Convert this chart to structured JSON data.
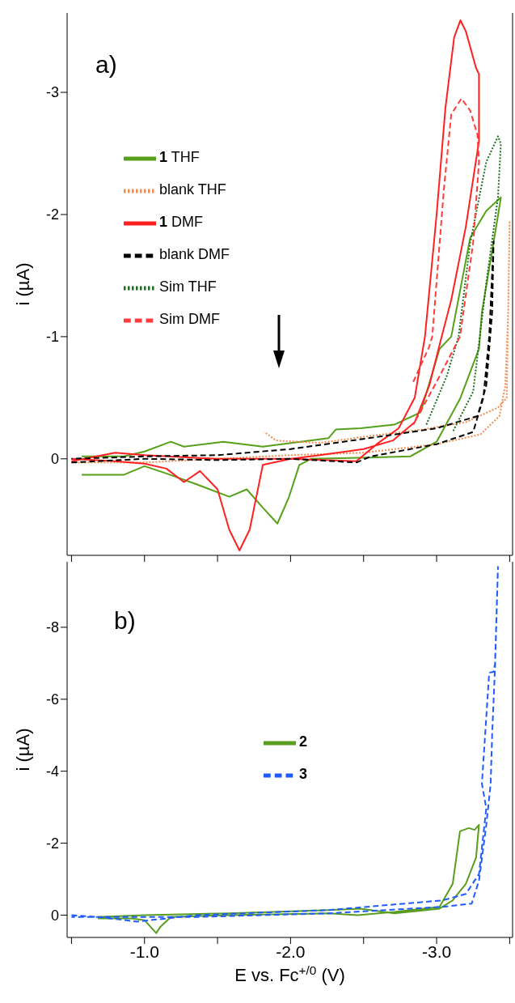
{
  "chart_data": [
    {
      "type": "line",
      "ylabel": "i (µA)",
      "annotations": [
        "a)"
      ],
      "legend": "top left",
      "tick_labels": "y",
      "xlim": [
        -0.47,
        -3.52
      ],
      "xticks": [
        {
          "value": -0.5,
          "label": null
        },
        {
          "value": -1,
          "label": null
        },
        {
          "value": -1.5,
          "label": null
        },
        {
          "value": -2,
          "label": null
        },
        {
          "value": -2.5,
          "label": null
        },
        {
          "value": -3,
          "label": null
        },
        {
          "value": -3.5,
          "label": null
        }
      ],
      "ylim": [
        0.79,
        -3.65
      ],
      "yticks": [
        -3,
        -2,
        -1,
        0
      ],
      "series": [
        {
          "name": "1 THF",
          "color": "#56a01a",
          "line_style": "solid",
          "x": [
            -0.57,
            -0.86,
            -1.0,
            -1.18,
            -1.27,
            -1.54,
            -1.81,
            -2.26,
            -2.31,
            -2.48,
            -2.71,
            -2.89,
            -3.02,
            -3.1,
            -3.23,
            -3.34,
            -3.44,
            -3.42,
            -3.31,
            -3.29,
            -3.16,
            -3.0,
            -2.82,
            -2.53,
            -2.14,
            -2.06,
            -1.99,
            -1.91,
            -1.81,
            -1.7,
            -1.58,
            -1.36,
            -1.15,
            -1.0,
            -0.86,
            -0.57
          ],
          "values": [
            -0.02,
            -0.02,
            -0.06,
            -0.14,
            -0.1,
            -0.14,
            -0.1,
            -0.17,
            -0.24,
            -0.25,
            -0.28,
            -0.38,
            -0.9,
            -1.0,
            -1.81,
            -2.03,
            -2.14,
            -1.99,
            -1.2,
            -0.9,
            -0.49,
            -0.14,
            -0.02,
            -0.01,
            0.0,
            0.05,
            0.31,
            0.53,
            0.4,
            0.25,
            0.31,
            0.21,
            0.12,
            0.06,
            0.13,
            0.13
          ]
        },
        {
          "name": "blank THF",
          "color": "#f28c50",
          "line_style": "dotted",
          "x": [
            -0.5,
            -1.0,
            -1.5,
            -2.0,
            -2.5,
            -3.0,
            -3.3,
            -3.43,
            -3.47,
            -3.49,
            -3.5,
            -3.48,
            -3.42,
            -3.2,
            -2.9,
            -2.5,
            -2.2,
            -1.9,
            -1.82
          ],
          "values": [
            0.03,
            0.03,
            0.0,
            -0.03,
            -0.05,
            -0.12,
            -0.2,
            -0.35,
            -0.6,
            -1.2,
            -1.95,
            -0.5,
            -0.42,
            -0.3,
            -0.24,
            -0.18,
            -0.13,
            -0.15,
            -0.22
          ]
        },
        {
          "name": "1 DMF",
          "color": "#ff2020",
          "line_style": "solid",
          "x": [
            -0.5,
            -0.8,
            -1.0,
            -1.5,
            -2.0,
            -2.45,
            -2.59,
            -2.74,
            -2.85,
            -2.92,
            -3.0,
            -3.06,
            -3.12,
            -3.163,
            -3.2,
            -3.27,
            -3.29,
            -3.29,
            -3.2,
            -3.1,
            -3.03,
            -2.95,
            -2.85,
            -2.7,
            -2.5,
            -2.2,
            -2.0,
            -1.81,
            -1.72,
            -1.65,
            -1.58,
            -1.5,
            -1.38,
            -1.27,
            -1.15,
            -1.0,
            -0.8,
            -0.5
          ],
          "values": [
            0.02,
            -0.05,
            -0.03,
            0.0,
            0.0,
            0.02,
            -0.12,
            -0.25,
            -0.5,
            -1.0,
            -2.0,
            -2.87,
            -3.45,
            -3.59,
            -3.5,
            -3.2,
            -3.15,
            -2.6,
            -1.9,
            -1.3,
            -0.98,
            -0.6,
            -0.3,
            -0.15,
            -0.08,
            -0.03,
            0.0,
            0.05,
            0.58,
            0.75,
            0.58,
            0.25,
            0.1,
            0.19,
            0.08,
            0.04,
            0.02,
            0.0
          ]
        },
        {
          "name": "blank DMF",
          "color": "#000000",
          "line_style": "dashed",
          "x": [
            -0.5,
            -1.0,
            -1.5,
            -2.0,
            -2.45,
            -2.55,
            -3.0,
            -3.25,
            -3.32,
            -3.36,
            -3.39,
            -3.38,
            -3.34,
            -3.28,
            -3.0,
            -2.6,
            -2.0,
            -1.5,
            -1.0,
            -0.5
          ],
          "values": [
            0.03,
            0.0,
            0.01,
            0.0,
            0.03,
            -0.02,
            -0.12,
            -0.22,
            -0.5,
            -1.0,
            -1.78,
            -1.2,
            -0.6,
            -0.35,
            -0.25,
            -0.18,
            -0.08,
            -0.03,
            -0.02,
            0.0
          ]
        },
        {
          "name": "Sim THF",
          "color": "#1c6e1c",
          "line_style": "dotted",
          "x": [
            -2.93,
            -3.07,
            -3.15,
            -3.23,
            -3.34,
            -3.42,
            -3.44,
            -3.42,
            -3.34,
            -3.25,
            -3.11
          ],
          "values": [
            -0.28,
            -0.68,
            -1.0,
            -1.77,
            -2.43,
            -2.64,
            -2.58,
            -2.14,
            -1.44,
            -0.55,
            -0.22
          ]
        },
        {
          "name": "Sim DMF",
          "color": "#ff3b3b",
          "line_style": "dashed",
          "x": [
            -2.84,
            -2.95,
            -2.97,
            -3.05,
            -3.1,
            -3.17,
            -3.23,
            -3.28,
            -3.29,
            -3.25,
            -3.16,
            -3.0,
            -2.84
          ],
          "values": [
            -0.63,
            -0.92,
            -1.0,
            -2.21,
            -2.82,
            -2.95,
            -2.85,
            -2.65,
            -2.43,
            -1.77,
            -1.0,
            -0.63,
            -0.28
          ]
        }
      ]
    },
    {
      "type": "line",
      "xlabel": "E vs. Fc$^{+/0}$ (V)",
      "ylabel": "i (µA)",
      "annotations": [
        "b)"
      ],
      "legend": "center",
      "xlim": [
        -0.47,
        -3.52
      ],
      "xticks": [
        {
          "value": -0.5,
          "label": null
        },
        {
          "value": -1,
          "label": "-1.0"
        },
        {
          "value": -1.5,
          "label": null
        },
        {
          "value": -2,
          "label": "-2.0"
        },
        {
          "value": -2.5,
          "label": null
        },
        {
          "value": -3,
          "label": "-3.0"
        },
        {
          "value": -3.5,
          "label": null
        }
      ],
      "ylim": [
        0.62,
        -9.82
      ],
      "yticks": [
        -8,
        -6,
        -4,
        -2,
        0
      ],
      "series": [
        {
          "name": "2",
          "color": "#5a9e20",
          "line_style": "solid",
          "x": [
            -0.68,
            -0.91,
            -1.0,
            -1.08,
            -1.11,
            -1.18,
            -1.58,
            -2.26,
            -2.46,
            -2.71,
            -3.02,
            -3.11,
            -3.16,
            -3.22,
            -3.26,
            -3.29,
            -3.27,
            -3.2,
            -3.11,
            -3.02,
            -2.71,
            -2.48,
            -2.26,
            -1.58,
            -1.0,
            -0.68
          ],
          "values": [
            0.09,
            0.09,
            0.14,
            0.5,
            0.32,
            0.05,
            0.0,
            -0.05,
            0.0,
            -0.09,
            -0.23,
            -0.87,
            -2.33,
            -2.42,
            -2.37,
            -2.51,
            -1.6,
            -0.87,
            -0.41,
            -0.18,
            -0.05,
            -0.18,
            -0.14,
            -0.05,
            0.0,
            0.05
          ]
        },
        {
          "name": "3",
          "color": "#1f5bff",
          "line_style": "dashed",
          "x": [
            -0.5,
            -0.68,
            -0.95,
            -1.36,
            -2.26,
            -3.04,
            -3.2,
            -3.29,
            -3.34,
            -3.31,
            -3.36,
            -3.39,
            -3.4,
            -3.42,
            -3.4,
            -3.38,
            -3.37,
            -3.34,
            -3.29,
            -3.24,
            -3.04,
            -2.26,
            -1.36,
            -0.5
          ],
          "values": [
            0.0,
            0.05,
            0.18,
            0.0,
            -0.14,
            -0.41,
            -0.59,
            -1.14,
            -2.97,
            -3.65,
            -6.74,
            -6.76,
            -7.0,
            -9.68,
            -6.9,
            -5.0,
            -3.65,
            -2.5,
            -0.96,
            -0.32,
            -0.23,
            -0.05,
            0.05,
            0.05
          ]
        }
      ]
    }
  ]
}
